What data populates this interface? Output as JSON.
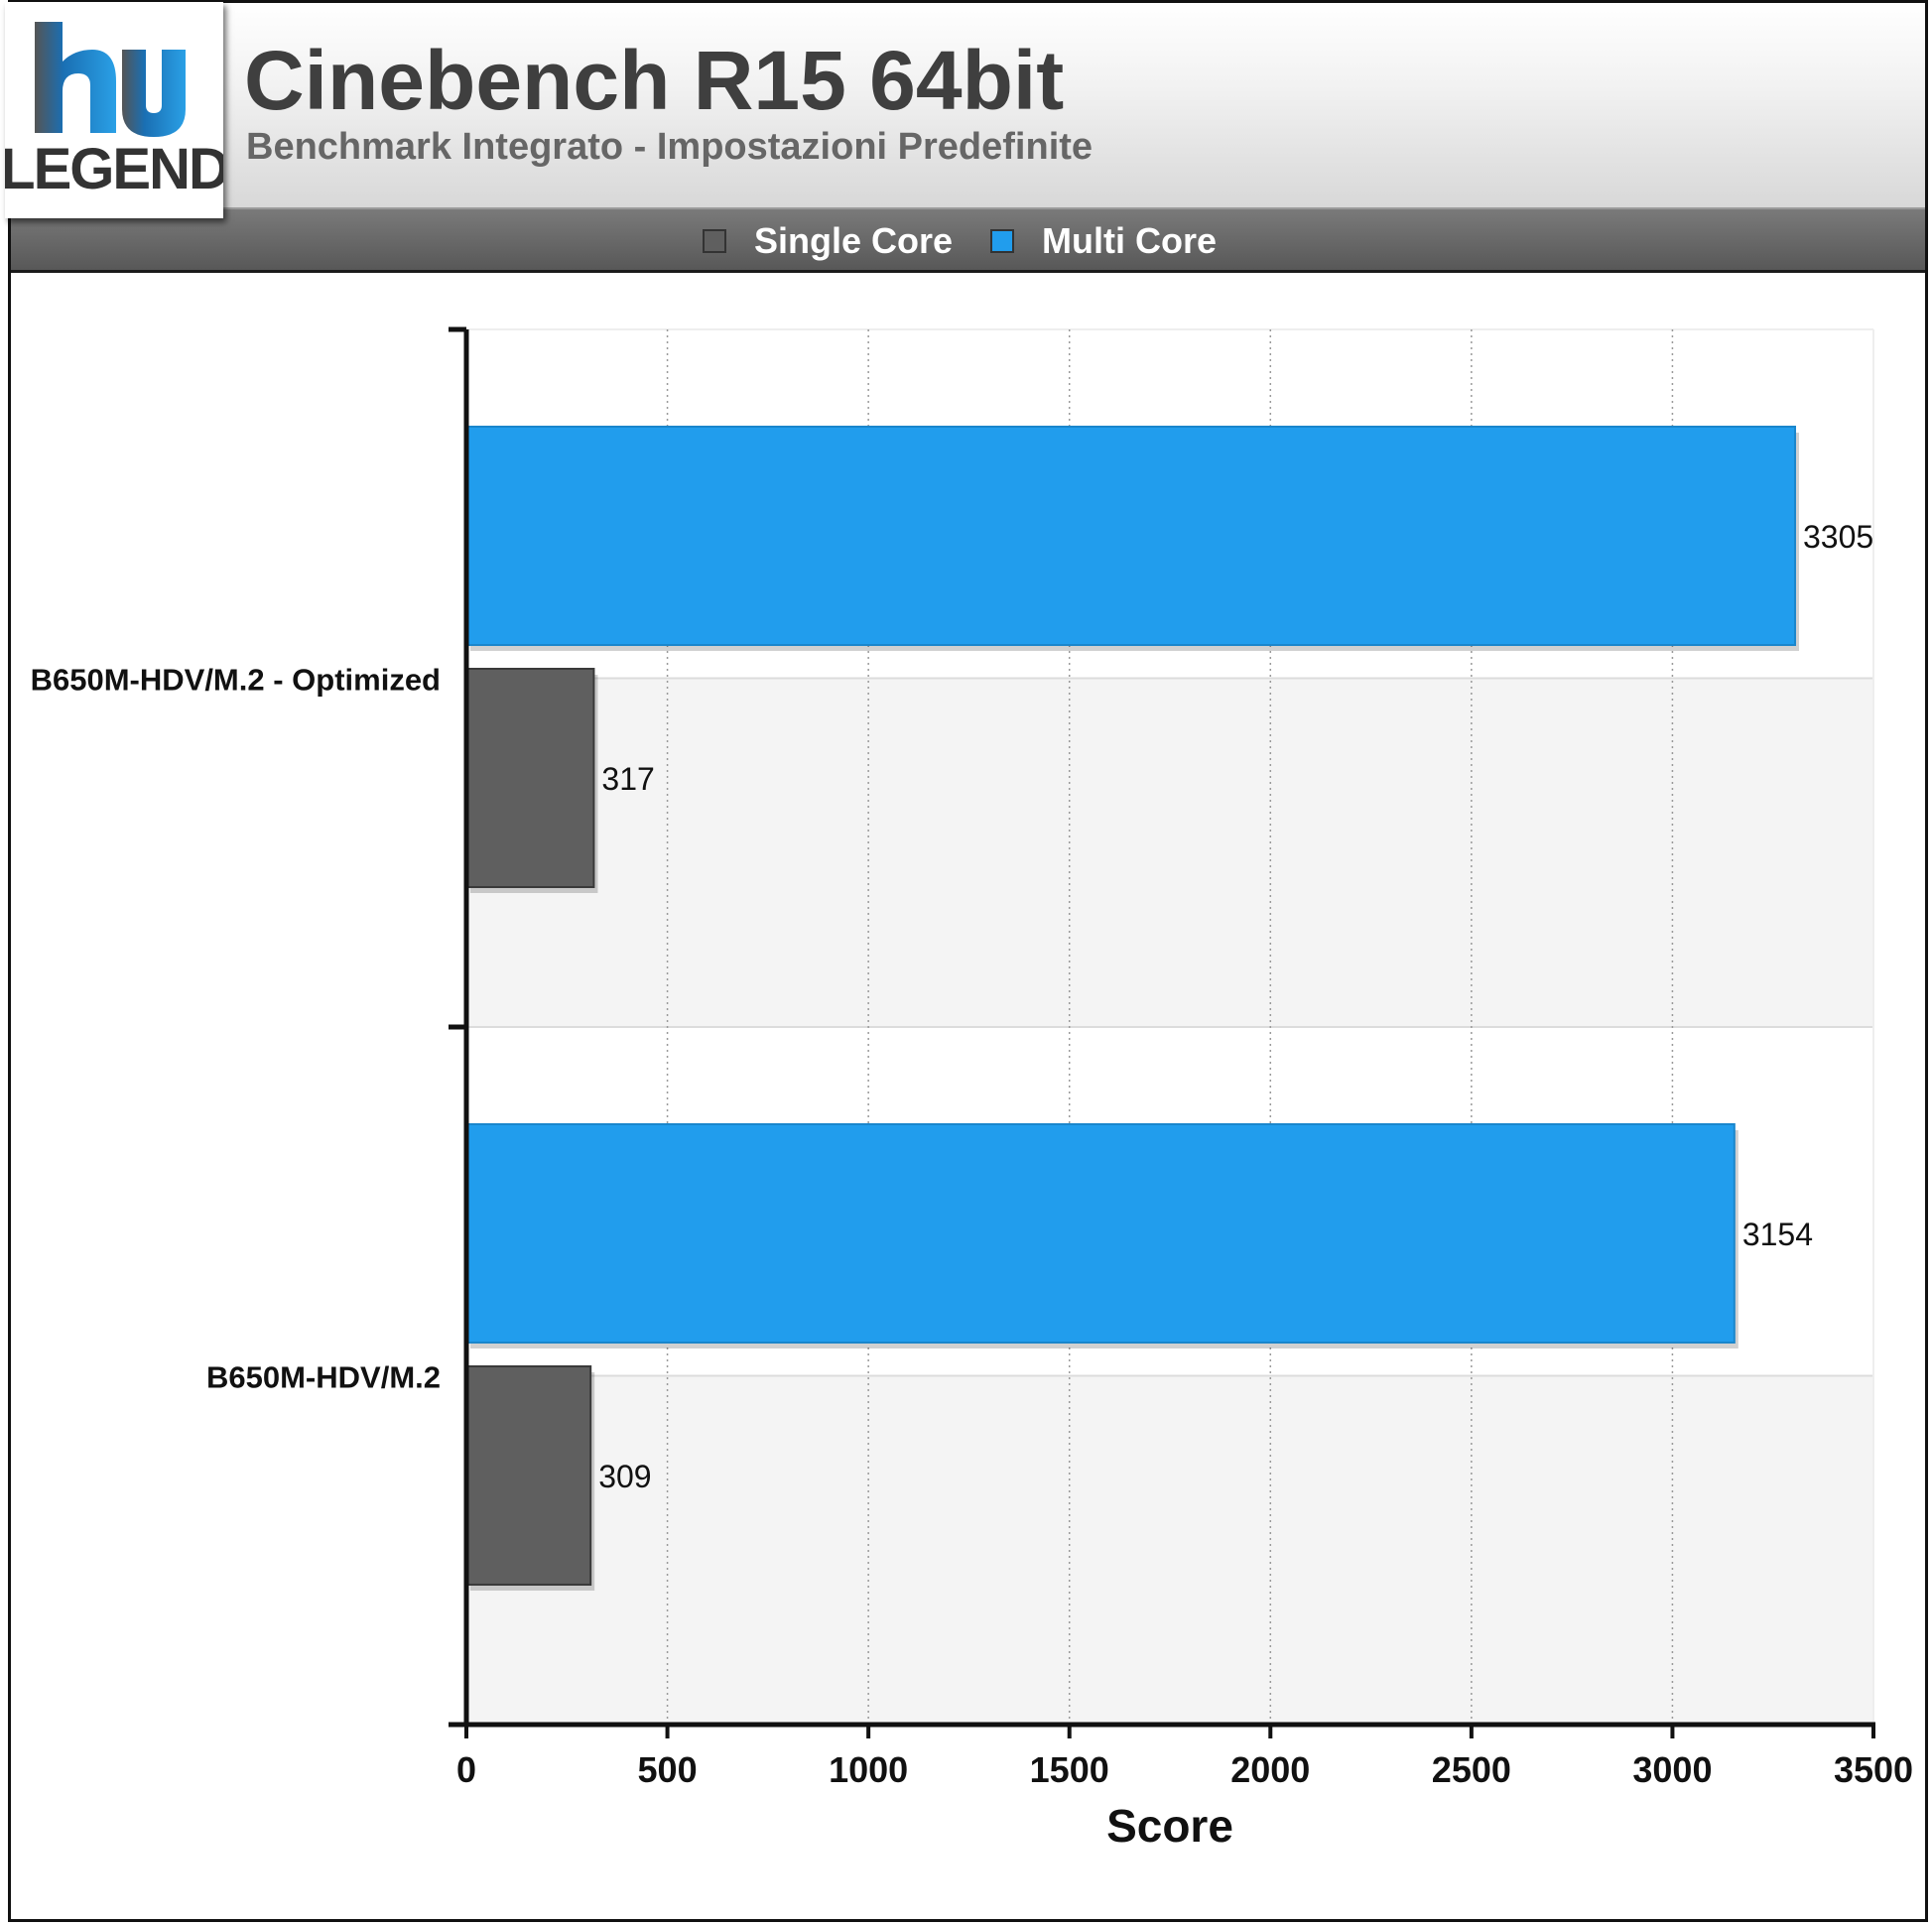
{
  "header": {
    "logo_text": "LEGEND",
    "title": "Cinebench R15 64bit",
    "subtitle": "Benchmark Integrato - Impostazioni Predefinite"
  },
  "colors": {
    "single_core": "#5f5f5f",
    "multi_core": "#219ded",
    "logo_blue": "#1a6fb3"
  },
  "chart_data": {
    "type": "bar",
    "orientation": "horizontal",
    "categories": [
      "B650M-HDV/M.2 - Optimized",
      "B650M-HDV/M.2"
    ],
    "series": [
      {
        "name": "Single Core",
        "values": [
          317,
          309
        ]
      },
      {
        "name": "Multi Core",
        "values": [
          3305,
          3154
        ]
      }
    ],
    "xlabel": "Score",
    "ylabel": "",
    "xlim": [
      0,
      3500
    ],
    "ticks": [
      "0",
      "500",
      "1000",
      "1500",
      "2000",
      "2500",
      "3000",
      "3500"
    ],
    "grid": true,
    "legend": "top-center"
  }
}
